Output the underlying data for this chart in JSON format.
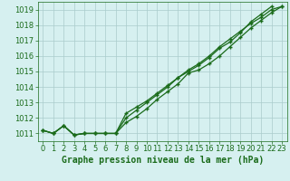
{
  "x": [
    0,
    1,
    2,
    3,
    4,
    5,
    6,
    7,
    8,
    9,
    10,
    11,
    12,
    13,
    14,
    15,
    16,
    17,
    18,
    19,
    20,
    21,
    22,
    23
  ],
  "line1": [
    1011.2,
    1011.0,
    1011.5,
    1010.9,
    1011.0,
    1011.0,
    1011.0,
    1011.0,
    1011.7,
    1012.1,
    1012.6,
    1013.2,
    1013.7,
    1014.2,
    1014.9,
    1015.1,
    1015.5,
    1016.0,
    1016.6,
    1017.2,
    1017.8,
    1018.3,
    1018.8,
    1019.2
  ],
  "line2": [
    1011.2,
    1011.0,
    1011.5,
    1010.9,
    1011.0,
    1011.0,
    1011.0,
    1011.0,
    1012.3,
    1012.7,
    1013.1,
    1013.6,
    1014.1,
    1014.6,
    1015.0,
    1015.4,
    1015.9,
    1016.5,
    1016.9,
    1017.5,
    1018.2,
    1018.7,
    1019.2,
    null
  ],
  "line3": [
    1011.2,
    1011.0,
    1011.5,
    1010.9,
    1011.0,
    1011.0,
    1011.0,
    1011.0,
    1012.0,
    1012.5,
    1013.0,
    1013.5,
    1014.0,
    1014.6,
    1015.1,
    1015.5,
    1016.0,
    1016.6,
    1017.1,
    1017.6,
    1018.1,
    1018.5,
    1019.0,
    1019.2
  ],
  "ylim": [
    1010.5,
    1019.5
  ],
  "xlim": [
    -0.5,
    23.5
  ],
  "yticks": [
    1011,
    1012,
    1013,
    1014,
    1015,
    1016,
    1017,
    1018,
    1019
  ],
  "xticks": [
    0,
    1,
    2,
    3,
    4,
    5,
    6,
    7,
    8,
    9,
    10,
    11,
    12,
    13,
    14,
    15,
    16,
    17,
    18,
    19,
    20,
    21,
    22,
    23
  ],
  "line_color": "#1a6b1a",
  "bg_color": "#d6f0f0",
  "grid_color": "#aacccc",
  "xlabel": "Graphe pression niveau de la mer (hPa)",
  "xlabel_color": "#1a6b1a",
  "tick_color": "#1a6b1a",
  "axis_color": "#1a6b1a",
  "label_fontsize": 7.0,
  "tick_fontsize": 6.0,
  "figsize": [
    3.2,
    2.0
  ],
  "dpi": 100
}
